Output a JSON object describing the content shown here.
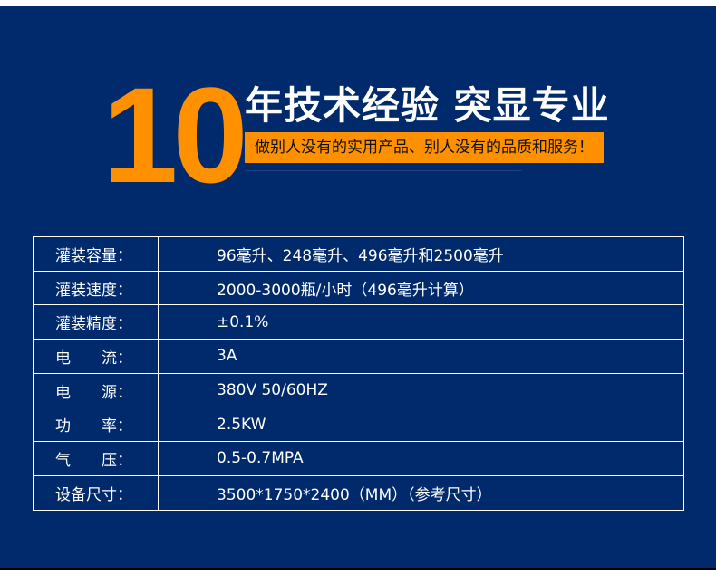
{
  "header": {
    "number": "10",
    "headline": "年技术经验 突显专业",
    "slogan": "做别人没有的实用产品、别人没有的品质和服务！",
    "fine_print": "………………………………………………………………………………………………………………………………………………………………………………………………………………………………………………………………………………"
  },
  "colors": {
    "background": "#002a6b",
    "accent": "#ff9100"
  },
  "specs": [
    {
      "label": "灌装容量：",
      "value": "96毫升、248毫升、496毫升和2500毫升"
    },
    {
      "label": "灌装速度：",
      "value": "2000-3000瓶/小时（496毫升计算）"
    },
    {
      "label": "灌装精度：",
      "value": "±0.1%"
    },
    {
      "label": "电　　流：",
      "value": "3A"
    },
    {
      "label": "电　　源：",
      "value": "380V 50/60HZ"
    },
    {
      "label": "功　　率：",
      "value": "2.5KW"
    },
    {
      "label": "气　　压：",
      "value": "0.5-0.7MPA"
    },
    {
      "label": "设备尺寸：",
      "value": "3500*1750*2400（MM）（参考尺寸）"
    }
  ]
}
